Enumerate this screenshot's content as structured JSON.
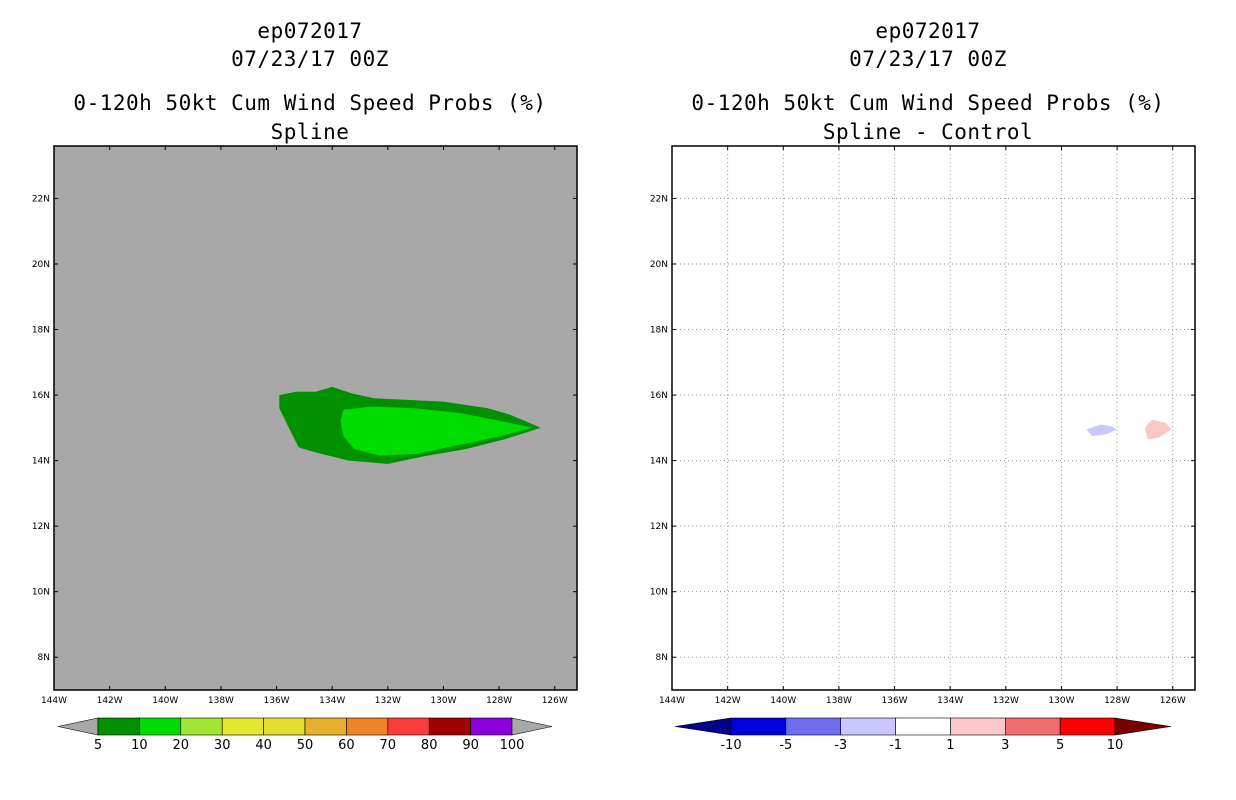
{
  "chart_data": [
    {
      "type": "filled-contour-map",
      "id": "spline",
      "title_lines": [
        "ep072017",
        "07/23/17 00Z",
        "0-120h 50kt Cum Wind Speed Probs (%)",
        "Spline"
      ],
      "x_ticks": [
        "144W",
        "142W",
        "140W",
        "138W",
        "136W",
        "134W",
        "132W",
        "130W",
        "128W",
        "126W"
      ],
      "y_ticks": [
        "8N",
        "10N",
        "12N",
        "14N",
        "16N",
        "18N",
        "20N",
        "22N"
      ],
      "xlim": [
        -144,
        -125.2
      ],
      "ylim": [
        7,
        23.6
      ],
      "background_color": "#a8a8a8",
      "grid": false,
      "contours": [
        {
          "level": 5,
          "color": "#009000",
          "polygon": [
            [
              -135.9,
              16.0
            ],
            [
              -135.3,
              16.1
            ],
            [
              -134.6,
              16.1
            ],
            [
              -134.0,
              16.25
            ],
            [
              -133.3,
              16.05
            ],
            [
              -132.5,
              15.9
            ],
            [
              -130.0,
              15.8
            ],
            [
              -128.4,
              15.6
            ],
            [
              -127.6,
              15.4
            ],
            [
              -126.5,
              15.0
            ],
            [
              -127.8,
              14.65
            ],
            [
              -129.2,
              14.35
            ],
            [
              -130.6,
              14.15
            ],
            [
              -132.0,
              13.9
            ],
            [
              -133.4,
              14.0
            ],
            [
              -134.6,
              14.25
            ],
            [
              -135.2,
              14.4
            ],
            [
              -135.5,
              14.9
            ],
            [
              -135.9,
              15.6
            ]
          ]
        },
        {
          "level": 10,
          "color": "#00dc00",
          "polygon": [
            [
              -133.6,
              15.55
            ],
            [
              -132.6,
              15.65
            ],
            [
              -131.0,
              15.6
            ],
            [
              -129.4,
              15.45
            ],
            [
              -128.2,
              15.25
            ],
            [
              -126.8,
              15.0
            ],
            [
              -128.2,
              14.7
            ],
            [
              -129.6,
              14.45
            ],
            [
              -131.0,
              14.2
            ],
            [
              -132.3,
              14.15
            ],
            [
              -133.2,
              14.35
            ],
            [
              -133.6,
              14.75
            ],
            [
              -133.7,
              15.2
            ]
          ]
        }
      ],
      "colorbar": {
        "labels": [
          "5",
          "10",
          "20",
          "30",
          "40",
          "50",
          "60",
          "70",
          "80",
          "90",
          "100"
        ],
        "colors": [
          "#009000",
          "#00dc00",
          "#a0e632",
          "#e6e632",
          "#e6dc32",
          "#e6af2d",
          "#f08228",
          "#fa3c3c",
          "#a00000",
          "#8c00dc"
        ],
        "under_color": "#a8a8a8",
        "over_color": "#a8a8a8"
      }
    },
    {
      "type": "filled-contour-map",
      "id": "spline-minus-control",
      "title_lines": [
        "ep072017",
        "07/23/17 00Z",
        "0-120h 50kt Cum Wind Speed Probs (%)",
        "Spline - Control"
      ],
      "x_ticks": [
        "144W",
        "142W",
        "140W",
        "138W",
        "136W",
        "134W",
        "132W",
        "130W",
        "128W",
        "126W"
      ],
      "y_ticks": [
        "8N",
        "10N",
        "12N",
        "14N",
        "16N",
        "18N",
        "20N",
        "22N"
      ],
      "xlim": [
        -144,
        -125.2
      ],
      "ylim": [
        7,
        23.6
      ],
      "background_color": "#ffffff",
      "grid": true,
      "contours": [
        {
          "level": -3,
          "color": "#c8c8fa",
          "polygon": [
            [
              -129.1,
              14.95
            ],
            [
              -128.6,
              15.1
            ],
            [
              -128.2,
              15.05
            ],
            [
              -128.0,
              14.95
            ],
            [
              -128.4,
              14.8
            ],
            [
              -128.9,
              14.75
            ]
          ]
        },
        {
          "level": 1,
          "color": "#fac8c8",
          "polygon": [
            [
              -127.0,
              15.0
            ],
            [
              -126.75,
              15.25
            ],
            [
              -126.25,
              15.15
            ],
            [
              -126.05,
              14.95
            ],
            [
              -126.5,
              14.7
            ],
            [
              -126.9,
              14.65
            ]
          ]
        }
      ],
      "colorbar": {
        "labels": [
          "-10",
          "-5",
          "-3",
          "-1",
          "1",
          "3",
          "5",
          "10"
        ],
        "colors": [
          "#0000dc",
          "#6e6ef0",
          "#c8c8fa",
          "#ffffff",
          "#fac8c8",
          "#f06e6e",
          "#ff0000"
        ],
        "under_color": "#00008c",
        "over_color": "#780000"
      }
    }
  ]
}
